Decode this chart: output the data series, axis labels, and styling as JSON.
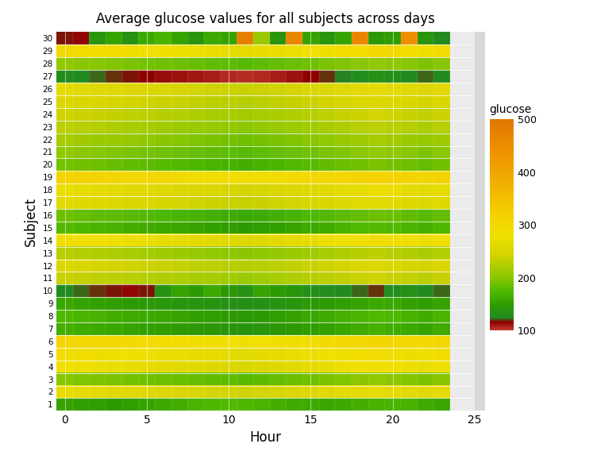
{
  "title": "Average glucose values for all subjects across days",
  "xlabel": "Hour",
  "ylabel": "Subject",
  "n_subjects": 30,
  "n_hours": 24,
  "vmin": 100,
  "vmax": 500,
  "colorbar_ticks": [
    100,
    200,
    300,
    400,
    500
  ],
  "colorbar_label": "glucose",
  "background_color": "#EBEBEB",
  "glucose_data": [
    [
      155,
      152,
      150,
      148,
      150,
      155,
      160,
      165,
      170,
      172,
      175,
      172,
      170,
      165,
      162,
      160,
      158,
      160,
      165,
      168,
      170,
      168,
      162,
      158
    ],
    [
      270,
      268,
      265,
      262,
      260,
      258,
      255,
      252,
      250,
      248,
      245,
      243,
      245,
      248,
      252,
      256,
      260,
      264,
      268,
      270,
      268,
      264,
      260,
      268
    ],
    [
      200,
      198,
      196,
      194,
      192,
      190,
      188,
      186,
      184,
      182,
      180,
      178,
      180,
      183,
      186,
      190,
      194,
      198,
      202,
      205,
      203,
      199,
      195,
      200
    ],
    [
      280,
      278,
      275,
      272,
      270,
      268,
      265,
      262,
      260,
      258,
      255,
      252,
      255,
      258,
      262,
      266,
      270,
      274,
      278,
      282,
      280,
      276,
      272,
      278
    ],
    [
      290,
      288,
      285,
      282,
      280,
      278,
      275,
      272,
      270,
      268,
      265,
      262,
      265,
      268,
      272,
      276,
      280,
      284,
      288,
      292,
      290,
      286,
      282,
      288
    ],
    [
      305,
      302,
      300,
      298,
      295,
      292,
      290,
      288,
      285,
      283,
      280,
      278,
      280,
      283,
      286,
      290,
      294,
      298,
      302,
      306,
      304,
      300,
      296,
      302
    ],
    [
      165,
      162,
      160,
      158,
      155,
      152,
      150,
      148,
      145,
      143,
      140,
      138,
      140,
      143,
      146,
      150,
      154,
      158,
      162,
      166,
      164,
      160,
      156,
      162
    ],
    [
      172,
      170,
      168,
      165,
      162,
      160,
      158,
      155,
      152,
      150,
      148,
      145,
      148,
      151,
      154,
      158,
      162,
      166,
      170,
      174,
      172,
      168,
      164,
      170
    ],
    [
      158,
      155,
      152,
      150,
      148,
      145,
      142,
      140,
      138,
      136,
      134,
      132,
      134,
      137,
      140,
      144,
      148,
      152,
      156,
      160,
      158,
      154,
      150,
      156
    ],
    [
      125,
      122,
      120,
      118,
      115,
      118,
      135,
      155,
      148,
      160,
      145,
      135,
      155,
      148,
      140,
      130,
      128,
      125,
      122,
      120,
      128,
      132,
      125,
      122
    ],
    [
      238,
      235,
      232,
      230,
      228,
      226,
      224,
      222,
      220,
      218,
      215,
      212,
      215,
      218,
      222,
      226,
      230,
      234,
      238,
      241,
      239,
      235,
      231,
      236
    ],
    [
      252,
      250,
      248,
      245,
      242,
      240,
      238,
      235,
      232,
      230,
      228,
      225,
      228,
      231,
      234,
      238,
      242,
      246,
      250,
      254,
      252,
      248,
      244,
      250
    ],
    [
      228,
      226,
      224,
      221,
      218,
      216,
      214,
      211,
      208,
      206,
      204,
      202,
      204,
      207,
      210,
      214,
      218,
      222,
      226,
      230,
      228,
      224,
      220,
      226
    ],
    [
      285,
      282,
      280,
      278,
      275,
      272,
      270,
      268,
      265,
      263,
      260,
      258,
      260,
      263,
      266,
      270,
      274,
      278,
      282,
      286,
      284,
      280,
      276,
      282
    ],
    [
      175,
      172,
      170,
      168,
      165,
      162,
      160,
      158,
      155,
      152,
      150,
      148,
      150,
      153,
      156,
      160,
      164,
      168,
      172,
      176,
      174,
      170,
      166,
      172
    ],
    [
      188,
      185,
      182,
      180,
      178,
      175,
      172,
      170,
      168,
      165,
      162,
      160,
      162,
      165,
      168,
      172,
      176,
      180,
      184,
      188,
      186,
      182,
      178,
      184
    ],
    [
      262,
      260,
      258,
      255,
      252,
      250,
      248,
      245,
      242,
      240,
      238,
      236,
      238,
      241,
      244,
      248,
      252,
      256,
      260,
      264,
      262,
      258,
      254,
      260
    ],
    [
      272,
      270,
      268,
      265,
      262,
      260,
      258,
      255,
      252,
      250,
      248,
      246,
      248,
      251,
      254,
      258,
      262,
      266,
      270,
      274,
      272,
      268,
      264,
      270
    ],
    [
      312,
      310,
      308,
      305,
      302,
      300,
      298,
      295,
      292,
      290,
      288,
      285,
      288,
      291,
      294,
      298,
      302,
      306,
      310,
      314,
      312,
      308,
      304,
      310
    ],
    [
      192,
      190,
      188,
      185,
      182,
      180,
      178,
      175,
      172,
      170,
      168,
      165,
      168,
      171,
      174,
      178,
      182,
      186,
      190,
      194,
      192,
      188,
      184,
      190
    ],
    [
      205,
      202,
      200,
      198,
      195,
      192,
      190,
      188,
      185,
      182,
      180,
      178,
      180,
      183,
      186,
      190,
      194,
      198,
      202,
      206,
      204,
      200,
      196,
      202
    ],
    [
      218,
      215,
      212,
      210,
      208,
      205,
      202,
      200,
      198,
      195,
      192,
      190,
      192,
      195,
      198,
      202,
      206,
      210,
      214,
      218,
      216,
      212,
      208,
      214
    ],
    [
      230,
      228,
      225,
      222,
      220,
      218,
      215,
      212,
      210,
      208,
      205,
      202,
      205,
      208,
      211,
      215,
      219,
      223,
      227,
      231,
      229,
      225,
      221,
      227
    ],
    [
      242,
      240,
      238,
      235,
      232,
      230,
      228,
      225,
      222,
      220,
      218,
      216,
      218,
      221,
      224,
      228,
      232,
      236,
      240,
      244,
      242,
      238,
      234,
      240
    ],
    [
      255,
      252,
      250,
      248,
      245,
      242,
      240,
      238,
      235,
      232,
      230,
      228,
      230,
      233,
      236,
      240,
      244,
      248,
      252,
      256,
      254,
      250,
      246,
      252
    ],
    [
      265,
      262,
      260,
      258,
      255,
      252,
      250,
      248,
      245,
      242,
      240,
      238,
      240,
      243,
      246,
      250,
      254,
      258,
      262,
      266,
      264,
      260,
      256,
      262
    ],
    [
      128,
      125,
      122,
      120,
      118,
      116,
      114,
      112,
      110,
      108,
      106,
      104,
      106,
      109,
      112,
      116,
      120,
      124,
      128,
      132,
      130,
      126,
      122,
      126
    ],
    [
      205,
      202,
      200,
      198,
      195,
      192,
      190,
      188,
      185,
      182,
      180,
      178,
      180,
      183,
      186,
      190,
      194,
      198,
      202,
      206,
      204,
      200,
      196,
      202
    ],
    [
      295,
      292,
      290,
      288,
      285,
      282,
      280,
      278,
      275,
      272,
      270,
      268,
      270,
      273,
      276,
      280,
      284,
      288,
      292,
      296,
      294,
      290,
      286,
      292
    ],
    [
      118,
      115,
      140,
      155,
      135,
      160,
      170,
      155,
      140,
      160,
      155,
      480,
      210,
      140,
      460,
      155,
      140,
      155,
      460,
      145,
      150,
      440,
      140,
      125
    ]
  ]
}
